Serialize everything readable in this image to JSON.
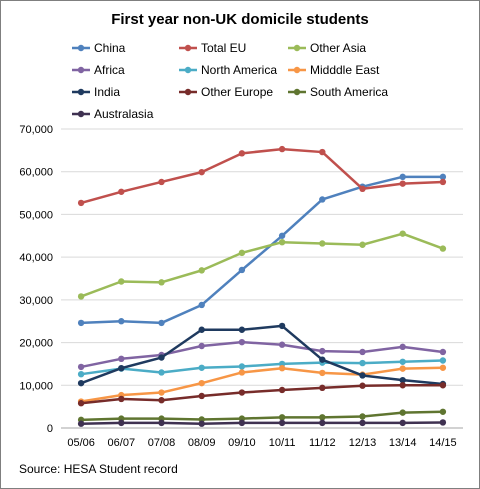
{
  "chart_data": {
    "type": "line",
    "title": "First year non-UK domicile students",
    "source": "Source: HESA Student record",
    "categories": [
      "05/06",
      "06/07",
      "07/08",
      "08/09",
      "09/10",
      "10/11",
      "11/12",
      "12/13",
      "13/14",
      "14/15"
    ],
    "ylim": [
      0,
      70000
    ],
    "yticks": [
      0,
      10000,
      20000,
      30000,
      40000,
      50000,
      60000,
      70000
    ],
    "ytick_labels": [
      "0",
      "10,000",
      "20,000",
      "30,000",
      "40,000",
      "50,000",
      "60,000",
      "70,000"
    ],
    "grid": true,
    "legend_placement": "top",
    "series": [
      {
        "name": "China",
        "color": "#4f81bd",
        "values": [
          24600,
          25000,
          24600,
          28800,
          37000,
          45000,
          53500,
          56500,
          58800,
          58800
        ]
      },
      {
        "name": "Total EU",
        "color": "#c0504d",
        "values": [
          52700,
          55300,
          57600,
          59900,
          64300,
          65300,
          64600,
          56000,
          57200,
          57600
        ]
      },
      {
        "name": "Other Asia",
        "color": "#9bbb59",
        "values": [
          30800,
          34300,
          34100,
          36900,
          41000,
          43500,
          43200,
          42900,
          45500,
          42000
        ]
      },
      {
        "name": "Africa",
        "color": "#8064a2",
        "values": [
          14300,
          16200,
          17100,
          19200,
          20100,
          19500,
          18000,
          17800,
          19000,
          17800
        ]
      },
      {
        "name": "North America",
        "color": "#4bacc6",
        "values": [
          12600,
          13900,
          13000,
          14100,
          14400,
          15000,
          15300,
          15200,
          15500,
          15800
        ]
      },
      {
        "name": "Midddle East",
        "color": "#f79646",
        "values": [
          6200,
          7700,
          8300,
          10500,
          13000,
          14000,
          12900,
          12500,
          13900,
          14100
        ]
      },
      {
        "name": "India",
        "color": "#1f3a5f",
        "values": [
          10500,
          14000,
          16500,
          23000,
          23000,
          23900,
          16000,
          12300,
          11200,
          10300
        ]
      },
      {
        "name": "Other Europe",
        "color": "#772c2a",
        "values": [
          5800,
          6800,
          6500,
          7500,
          8300,
          8900,
          9400,
          9900,
          10000,
          10000
        ]
      },
      {
        "name": "South America",
        "color": "#5f7530",
        "values": [
          1900,
          2200,
          2200,
          2000,
          2200,
          2500,
          2500,
          2700,
          3600,
          3800
        ]
      },
      {
        "name": "Australasia",
        "color": "#3f3151",
        "values": [
          1000,
          1200,
          1200,
          1000,
          1200,
          1200,
          1200,
          1200,
          1200,
          1300
        ]
      }
    ]
  }
}
